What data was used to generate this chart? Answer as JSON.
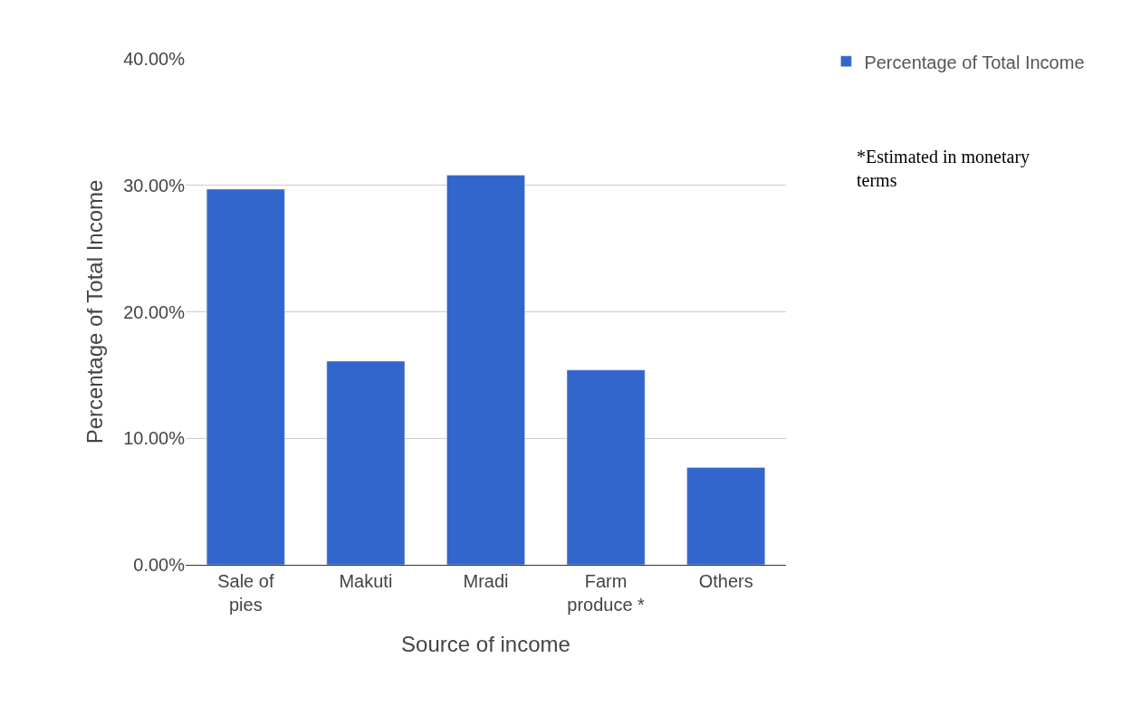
{
  "chart_data": {
    "type": "bar",
    "categories": [
      "Sale of pies",
      "Makuti",
      "Mradi",
      "Farm produce *",
      "Others"
    ],
    "series": [
      {
        "name": "Percentage of Total Income",
        "color": "#3366cc",
        "values": [
          29.7,
          16.1,
          30.8,
          15.4,
          7.7
        ]
      }
    ],
    "xlabel": "Source of income",
    "ylabel": "Percentage of Total Income",
    "ylim": [
      0,
      40
    ],
    "yticks": [
      {
        "value": 0,
        "label": "0.00%"
      },
      {
        "value": 10,
        "label": "10.00%"
      },
      {
        "value": 20,
        "label": "20.00%"
      },
      {
        "value": 30,
        "label": "30.00%"
      },
      {
        "value": 40,
        "label": "40.00%"
      }
    ],
    "grid": "y",
    "legend": "top right",
    "annotations": [
      "*Estimated in monetary terms"
    ]
  }
}
